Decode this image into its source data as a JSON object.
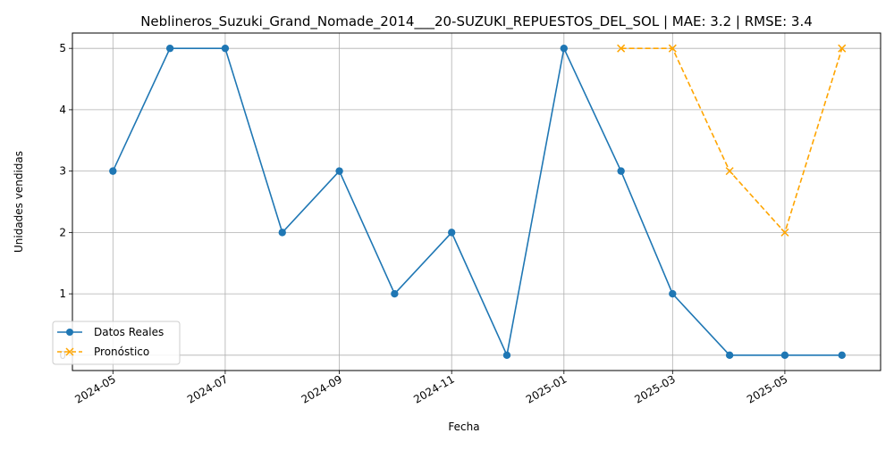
{
  "chart_data": {
    "type": "line",
    "title": "Neblineros_Suzuki_Grand_Nomade_2014___20-SUZUKI_REPUESTOS_DEL_SOL | MAE: 3.2 | RMSE: 3.4",
    "xlabel": "Fecha",
    "ylabel": "Unidades vendidas",
    "xlim": [
      "2024-04-09",
      "2025-06-22"
    ],
    "ylim": [
      -0.25,
      5.25
    ],
    "grid": true,
    "legend_position": "lower-left",
    "x_ticks": [
      {
        "date": "2024-05-01",
        "label": "2024-05"
      },
      {
        "date": "2024-07-01",
        "label": "2024-07"
      },
      {
        "date": "2024-09-01",
        "label": "2024-09"
      },
      {
        "date": "2024-11-01",
        "label": "2024-11"
      },
      {
        "date": "2025-01-01",
        "label": "2025-01"
      },
      {
        "date": "2025-03-01",
        "label": "2025-03"
      },
      {
        "date": "2025-05-01",
        "label": "2025-05"
      }
    ],
    "y_ticks": [
      0,
      1,
      2,
      3,
      4,
      5
    ],
    "series": [
      {
        "name": "Datos Reales",
        "color": "#1f77b4",
        "style": "solid",
        "marker": "circle",
        "points": [
          {
            "x": "2024-05-01",
            "y": 3
          },
          {
            "x": "2024-06-01",
            "y": 5
          },
          {
            "x": "2024-07-01",
            "y": 5
          },
          {
            "x": "2024-08-01",
            "y": 2
          },
          {
            "x": "2024-09-01",
            "y": 3
          },
          {
            "x": "2024-10-01",
            "y": 1
          },
          {
            "x": "2024-11-01",
            "y": 2
          },
          {
            "x": "2024-12-01",
            "y": 0
          },
          {
            "x": "2025-01-01",
            "y": 5
          },
          {
            "x": "2025-02-01",
            "y": 3
          },
          {
            "x": "2025-03-01",
            "y": 1
          },
          {
            "x": "2025-04-01",
            "y": 0
          },
          {
            "x": "2025-05-01",
            "y": 0
          },
          {
            "x": "2025-06-01",
            "y": 0
          }
        ]
      },
      {
        "name": "Pronóstico",
        "color": "#ffa500",
        "style": "dashed",
        "marker": "x",
        "points": [
          {
            "x": "2025-02-01",
            "y": 5
          },
          {
            "x": "2025-03-01",
            "y": 5
          },
          {
            "x": "2025-04-01",
            "y": 3
          },
          {
            "x": "2025-05-01",
            "y": 2
          },
          {
            "x": "2025-06-01",
            "y": 5
          }
        ]
      }
    ]
  }
}
